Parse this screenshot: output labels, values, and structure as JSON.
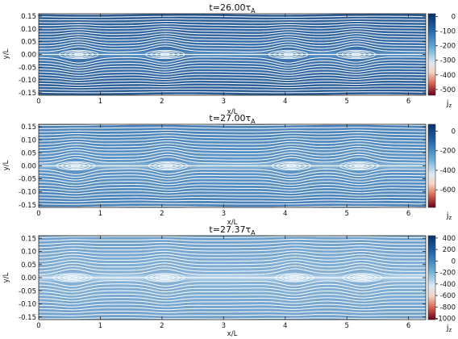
{
  "chart_data": [
    {
      "type": "heatmap",
      "title_main": "t=26.00τ",
      "title_sub": "A",
      "xlabel": "x/L",
      "ylabel": "y/L",
      "xlim": [
        0,
        6.28
      ],
      "ylim": [
        -0.16,
        0.16
      ],
      "xticks": [
        "0",
        "1",
        "2",
        "3",
        "4",
        "5",
        "6"
      ],
      "yticks": [
        "0.15",
        "0.10",
        "0.05",
        "0.00",
        "-0.05",
        "-0.10",
        "-0.15"
      ],
      "colorbar": {
        "label_main": "j",
        "label_sub": "z",
        "range": [
          -540,
          20
        ],
        "ticks": [
          "0",
          "-100",
          "-200",
          "-300",
          "-400",
          "-500"
        ]
      },
      "islands_x": [
        0.65,
        2.05,
        4.05,
        5.15
      ]
    },
    {
      "type": "heatmap",
      "title_main": "t=27.00τ",
      "title_sub": "A",
      "xlabel": "x/L",
      "ylabel": "y/L",
      "xlim": [
        0,
        6.28
      ],
      "ylim": [
        -0.16,
        0.16
      ],
      "xticks": [
        "0",
        "1",
        "2",
        "3",
        "4",
        "5",
        "6"
      ],
      "yticks": [
        "0.15",
        "0.10",
        "0.05",
        "0.00",
        "-0.05",
        "-0.10",
        "-0.15"
      ],
      "colorbar": {
        "label_main": "j",
        "label_sub": "z",
        "range": [
          -780,
          70
        ],
        "ticks": [
          "0",
          "-200",
          "-400",
          "-600"
        ]
      },
      "islands_x": [
        0.6,
        2.1,
        4.1,
        5.2
      ]
    },
    {
      "type": "heatmap",
      "title_main": "t=27.37τ",
      "title_sub": "A",
      "xlabel": "x/L",
      "ylabel": "y/L",
      "xlim": [
        0,
        6.28
      ],
      "ylim": [
        -0.16,
        0.16
      ],
      "xticks": [
        "0",
        "1",
        "2",
        "3",
        "4",
        "5",
        "6"
      ],
      "yticks": [
        "0.15",
        "0.10",
        "0.05",
        "0.00",
        "-0.05",
        "-0.10",
        "-0.15"
      ],
      "colorbar": {
        "label_main": "j",
        "label_sub": "z",
        "range": [
          -1020,
          440
        ],
        "ticks": [
          "400",
          "200",
          "0",
          "-200",
          "-400",
          "-600",
          "-800",
          "-1000"
        ]
      },
      "islands_x": [
        0.55,
        2.05,
        4.15,
        5.25
      ]
    }
  ],
  "colors": {
    "field_lines": "#ffffff",
    "current_sheet": "#e08a6a",
    "background_current": "#2e5f97",
    "colormap": [
      "#08306b",
      "#2166ac",
      "#6baed6",
      "#dce9f4",
      "#f4d3c2",
      "#d6604d",
      "#67001f"
    ]
  }
}
